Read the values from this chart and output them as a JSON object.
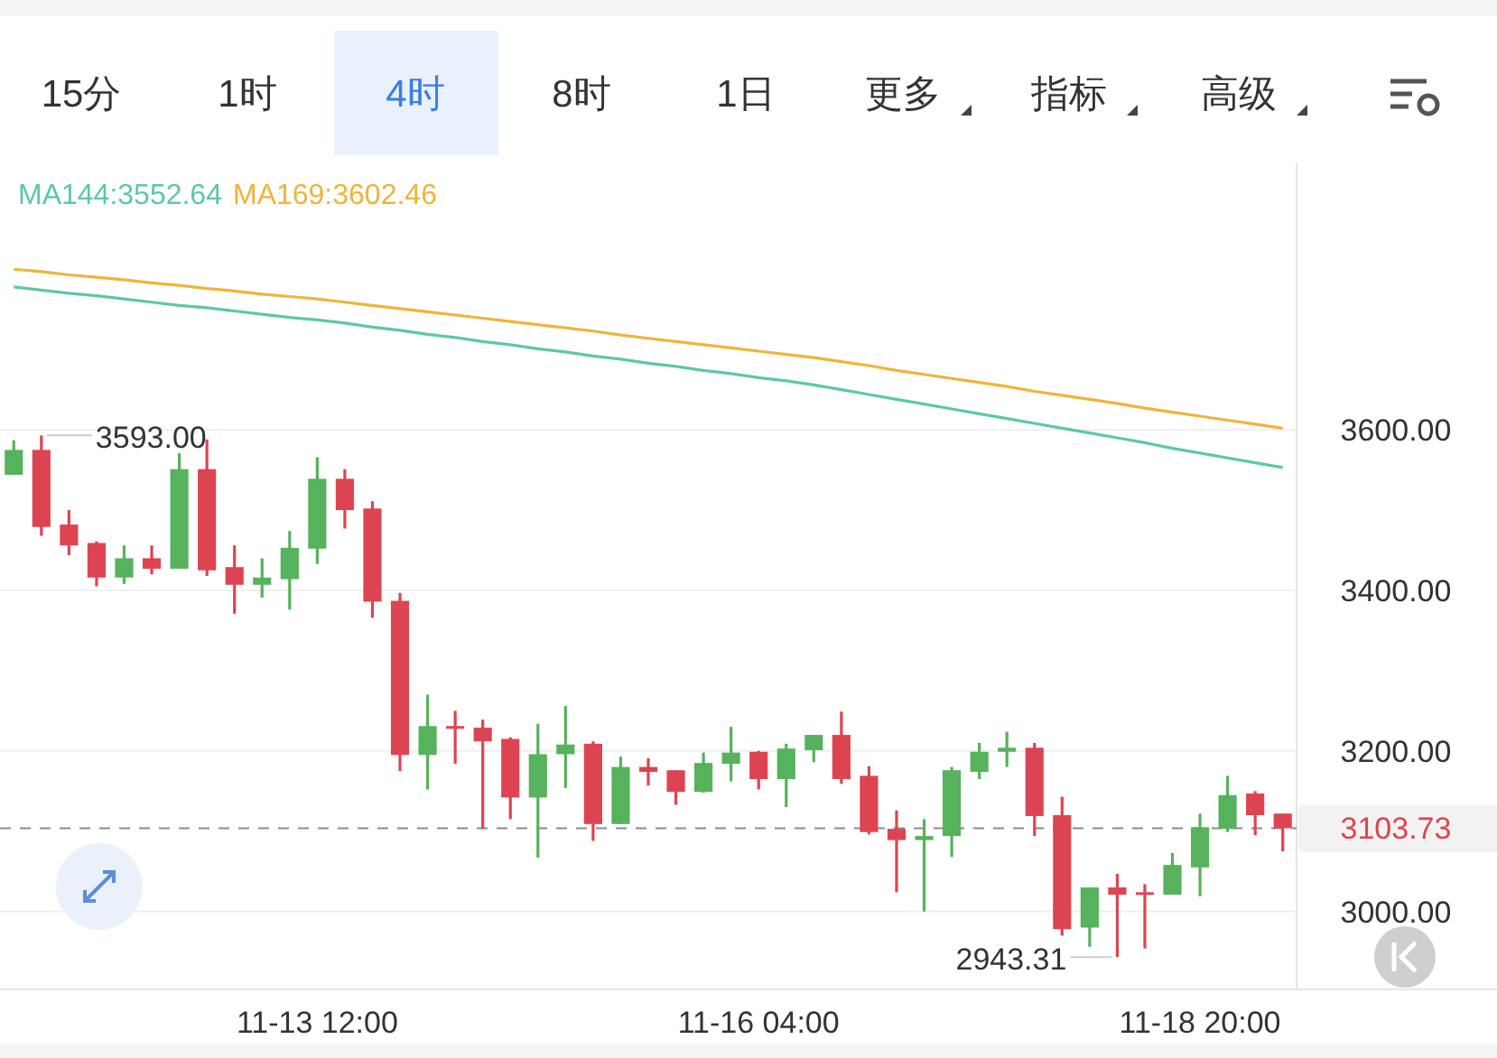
{
  "chart_data": {
    "type": "candlestick",
    "categories": [
      null,
      null,
      null,
      null,
      null,
      null,
      null,
      null,
      null,
      null,
      null,
      "11-13 12:00",
      null,
      null,
      null,
      null,
      null,
      null,
      null,
      null,
      null,
      null,
      null,
      null,
      null,
      null,
      null,
      "11-16 04:00",
      null,
      null,
      null,
      null,
      null,
      null,
      null,
      null,
      null,
      null,
      null,
      null,
      null,
      null,
      null,
      "11-18 20:00",
      null,
      null,
      null
    ],
    "ohlc": [
      [
        3544,
        3587,
        3544,
        3575
      ],
      [
        3575,
        3593,
        3468,
        3479
      ],
      [
        3482,
        3500,
        3444,
        3456
      ],
      [
        3459,
        3461,
        3405,
        3416
      ],
      [
        3416,
        3456,
        3408,
        3440
      ],
      [
        3440,
        3456,
        3420,
        3427
      ],
      [
        3427,
        3571,
        3427,
        3551
      ],
      [
        3551,
        3588,
        3418,
        3425
      ],
      [
        3429,
        3456,
        3371,
        3407
      ],
      [
        3407,
        3440,
        3391,
        3416
      ],
      [
        3414,
        3474,
        3376,
        3453
      ],
      [
        3452,
        3566,
        3433,
        3539
      ],
      [
        3539,
        3551,
        3477,
        3500
      ],
      [
        3502,
        3511,
        3366,
        3386
      ],
      [
        3387,
        3397,
        3175,
        3195
      ],
      [
        3195,
        3270,
        3152,
        3231
      ],
      [
        3231,
        3250,
        3184,
        3228
      ],
      [
        3229,
        3239,
        3103,
        3212
      ],
      [
        3215,
        3217,
        3115,
        3142
      ],
      [
        3142,
        3234,
        3067,
        3196
      ],
      [
        3196,
        3256,
        3154,
        3208
      ],
      [
        3209,
        3212,
        3088,
        3109
      ],
      [
        3109,
        3193,
        3109,
        3180
      ],
      [
        3180,
        3191,
        3157,
        3174
      ],
      [
        3176,
        3176,
        3133,
        3149
      ],
      [
        3149,
        3198,
        3148,
        3185
      ],
      [
        3184,
        3230,
        3162,
        3198
      ],
      [
        3199,
        3200,
        3152,
        3165
      ],
      [
        3165,
        3209,
        3130,
        3203
      ],
      [
        3201,
        3220,
        3186,
        3220
      ],
      [
        3220,
        3249,
        3159,
        3165
      ],
      [
        3169,
        3181,
        3096,
        3099
      ],
      [
        3103,
        3126,
        3024,
        3089
      ],
      [
        3089,
        3115,
        3000,
        3094
      ],
      [
        3094,
        3180,
        3068,
        3176
      ],
      [
        3174,
        3210,
        3165,
        3199
      ],
      [
        3199,
        3224,
        3180,
        3204
      ],
      [
        3204,
        3210,
        3094,
        3119
      ],
      [
        3120,
        3143,
        2970,
        2978
      ],
      [
        2980,
        3030,
        2956,
        3030
      ],
      [
        3030,
        3047,
        2943.31,
        3021
      ],
      [
        3024,
        3034,
        2954,
        3021
      ],
      [
        3021,
        3073,
        3021,
        3058
      ],
      [
        3055,
        3122,
        3019,
        3105
      ],
      [
        3103,
        3169,
        3099,
        3145
      ],
      [
        3147,
        3150,
        3095,
        3120
      ],
      [
        3122,
        3122,
        3075,
        3103.73
      ]
    ],
    "colors": [
      "#56b25c",
      "#dd4452",
      "#dd4452",
      "#dd4452",
      "#56b25c",
      "#dd4452",
      "#56b25c",
      "#dd4452",
      "#dd4452",
      "#56b25c",
      "#56b25c",
      "#56b25c",
      "#dd4452",
      "#dd4452",
      "#dd4452",
      "#56b25c",
      "#dd4452",
      "#dd4452",
      "#dd4452",
      "#56b25c",
      "#56b25c",
      "#dd4452",
      "#56b25c",
      "#dd4452",
      "#dd4452",
      "#56b25c",
      "#56b25c",
      "#dd4452",
      "#56b25c",
      "#56b25c",
      "#dd4452",
      "#dd4452",
      "#dd4452",
      "#56b25c",
      "#56b25c",
      "#56b25c",
      "#56b25c",
      "#dd4452",
      "#dd4452",
      "#56b25c",
      "#dd4452",
      "#dd4452",
      "#56b25c",
      "#56b25c",
      "#56b25c",
      "#dd4452",
      "#dd4452"
    ],
    "series": [
      {
        "name": "MA144:3552.64",
        "type": "line",
        "color": "#5cc8a8",
        "values": [
          3778,
          3774,
          3770,
          3767,
          3763,
          3759,
          3755,
          3752,
          3748,
          3744,
          3740,
          3737,
          3733,
          3728,
          3724,
          3719,
          3715,
          3710,
          3706,
          3701,
          3697,
          3692,
          3688,
          3683,
          3679,
          3674,
          3670,
          3665,
          3661,
          3656,
          3650,
          3644,
          3638,
          3632,
          3626,
          3620,
          3614,
          3608,
          3602,
          3596,
          3590,
          3584,
          3577,
          3571,
          3565,
          3559,
          3553
        ]
      },
      {
        "name": "MA169:3602.46",
        "type": "line",
        "color": "#efb43a",
        "values": [
          3800,
          3797,
          3793,
          3790,
          3787,
          3783,
          3780,
          3776,
          3773,
          3769,
          3766,
          3763,
          3759,
          3755,
          3751,
          3747,
          3743,
          3739,
          3735,
          3731,
          3727,
          3723,
          3718,
          3714,
          3710,
          3706,
          3702,
          3698,
          3694,
          3690,
          3685,
          3680,
          3674,
          3669,
          3664,
          3659,
          3654,
          3648,
          3643,
          3638,
          3633,
          3627,
          3622,
          3617,
          3612,
          3607,
          3602
        ]
      }
    ],
    "ylim": [
      2903,
      3933
    ],
    "yticks": [
      {
        "value": 3000,
        "label": "3000.00"
      },
      {
        "value": 3200,
        "label": "3200.00"
      },
      {
        "value": 3400,
        "label": "3400.00"
      },
      {
        "value": 3600,
        "label": "3600.00"
      }
    ],
    "grid": "y",
    "legend": "top",
    "ref_lines": [
      {
        "axis": "y",
        "value": 3103.73,
        "label": "3103.73",
        "color": "#8c8c8c",
        "line_style": "dashed"
      }
    ],
    "annotations": [
      "15分",
      "1时",
      "4时",
      "8时",
      "1日",
      "更多",
      "指标",
      "高级",
      "3593.00",
      "2943.31"
    ]
  }
}
